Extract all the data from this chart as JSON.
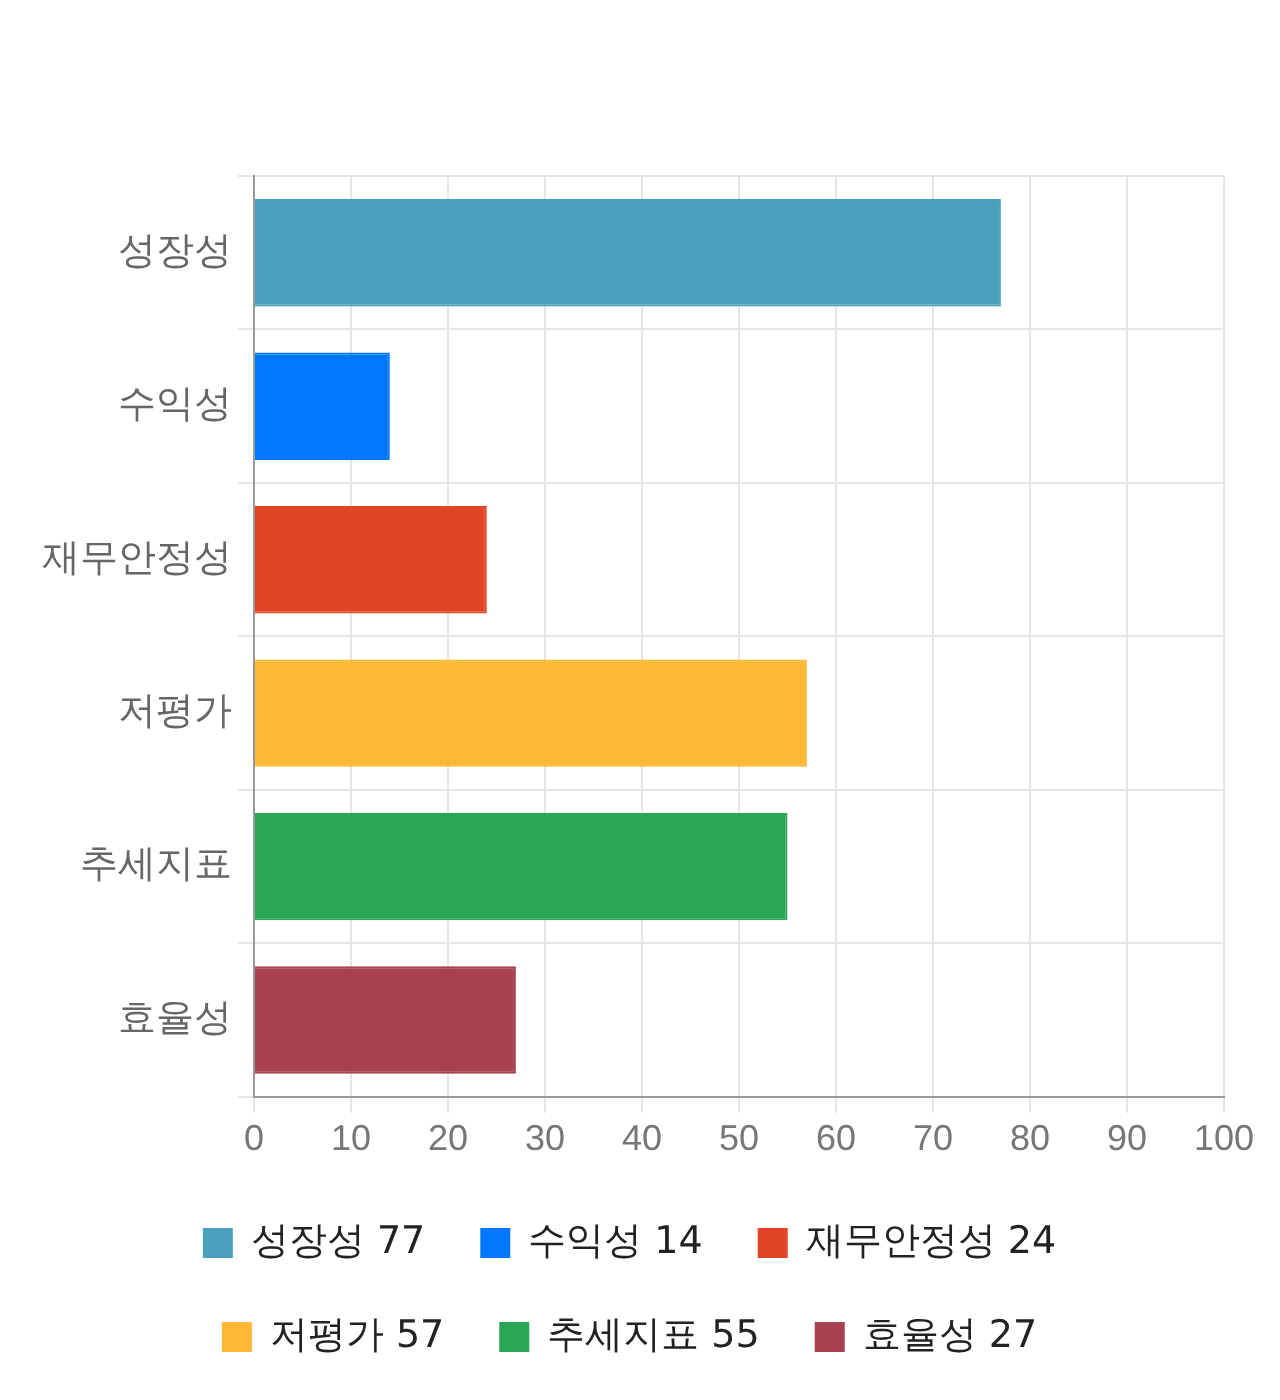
{
  "chart_data": {
    "type": "bar",
    "orientation": "horizontal",
    "categories": [
      "성장성",
      "수익성",
      "재무안정성",
      "저평가",
      "추세지표",
      "효율성"
    ],
    "series": [
      {
        "name": "성장성 77",
        "color": "#4aa0bc",
        "values": [
          77,
          null,
          null,
          null,
          null,
          null
        ]
      },
      {
        "name": "수익성 14",
        "color": "#0077ff",
        "values": [
          null,
          14,
          null,
          null,
          null,
          null
        ]
      },
      {
        "name": "재무안정성 24",
        "color": "#e24526",
        "values": [
          null,
          null,
          24,
          null,
          null,
          null
        ]
      },
      {
        "name": "저평가 57",
        "color": "#ffb833",
        "values": [
          null,
          null,
          null,
          57,
          null,
          null
        ]
      },
      {
        "name": "추세지표 55",
        "color": "#2aa655",
        "values": [
          null,
          null,
          null,
          null,
          55,
          null
        ]
      },
      {
        "name": "효율성 27",
        "color": "#a8404f",
        "values": [
          null,
          null,
          null,
          null,
          null,
          27
        ]
      }
    ],
    "xlim": [
      0,
      100
    ],
    "xticks": [
      0,
      10,
      20,
      30,
      40,
      50,
      60,
      70,
      80,
      90,
      100
    ],
    "grid": true,
    "legend": "bottom"
  }
}
